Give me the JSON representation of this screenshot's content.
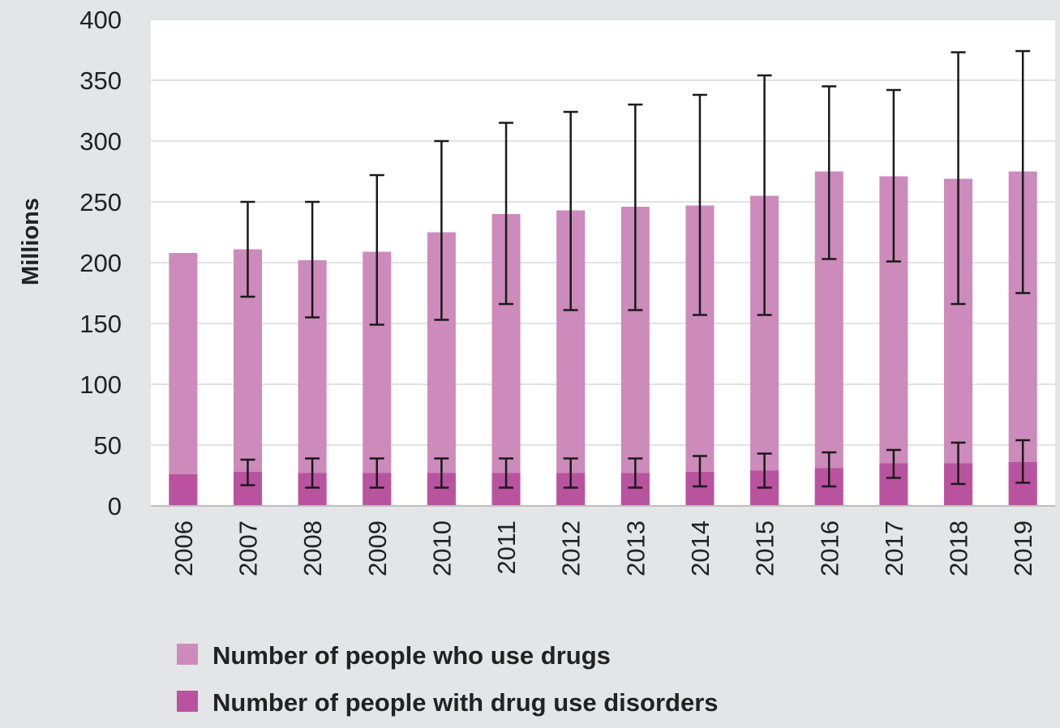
{
  "chart_data": {
    "type": "bar",
    "title": "",
    "xlabel": "",
    "ylabel": "Millions",
    "ylim": [
      0,
      400
    ],
    "yticks": [
      0,
      50,
      100,
      150,
      200,
      250,
      300,
      350,
      400
    ],
    "grid": "horizontal",
    "legend_position": "bottom",
    "categories": [
      "2006",
      "2007",
      "2008",
      "2009",
      "2010",
      "2011",
      "2012",
      "2013",
      "2014",
      "2015",
      "2016",
      "2017",
      "2018",
      "2019"
    ],
    "series": [
      {
        "name": "Number of people who use drugs",
        "color": "#cc8bbb",
        "values": [
          208,
          211,
          202,
          209,
          225,
          240,
          243,
          246,
          247,
          255,
          275,
          271,
          269,
          275
        ],
        "error_low": [
          null,
          172,
          155,
          149,
          153,
          166,
          161,
          161,
          157,
          157,
          203,
          201,
          166,
          175
        ],
        "error_high": [
          null,
          250,
          250,
          272,
          300,
          315,
          324,
          330,
          338,
          354,
          345,
          342,
          373,
          374
        ]
      },
      {
        "name": "Number of people with drug use disorders",
        "color": "#b9539f",
        "values": [
          26,
          28,
          27,
          27,
          27,
          27,
          27,
          27,
          28,
          29,
          31,
          35,
          35,
          36
        ],
        "error_low": [
          null,
          17,
          15,
          15,
          15,
          15,
          15,
          15,
          16,
          15,
          16,
          23,
          18,
          19
        ],
        "error_high": [
          null,
          38,
          39,
          39,
          39,
          39,
          39,
          39,
          41,
          43,
          44,
          46,
          52,
          54
        ]
      }
    ]
  }
}
